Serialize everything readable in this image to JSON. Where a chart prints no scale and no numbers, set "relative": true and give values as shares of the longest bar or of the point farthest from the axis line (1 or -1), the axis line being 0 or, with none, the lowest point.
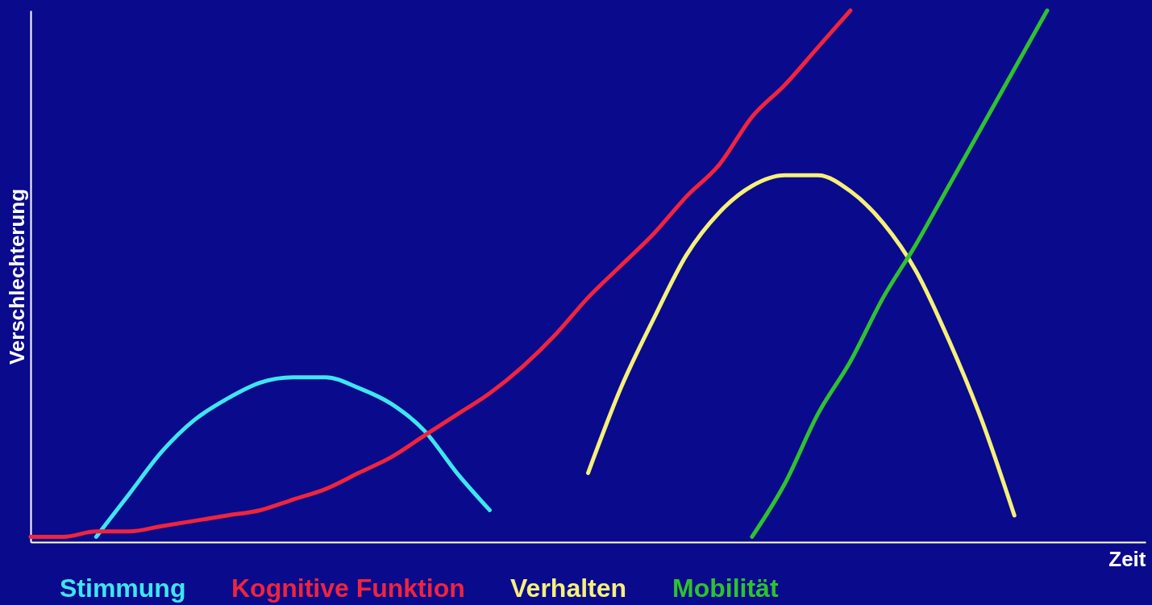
{
  "chart_data": {
    "type": "line",
    "relative": true,
    "ylabel": "Verschlechterung",
    "xlabel": "Zeit",
    "legend": "bottom",
    "grid": false,
    "marker": "none",
    "line_style": "solid",
    "categories": [
      null,
      null,
      null,
      null,
      null,
      null,
      null,
      null,
      null,
      null,
      null,
      null,
      null,
      null,
      null,
      null,
      null,
      null,
      null,
      null,
      null,
      null,
      null,
      null,
      null,
      null,
      null,
      null,
      null,
      null,
      null,
      null,
      null,
      null,
      null
    ],
    "series": [
      {
        "name": "Stimmung",
        "color": "#3ee6f0",
        "values": [
          null,
          null,
          0.01,
          0.09,
          0.17,
          0.23,
          0.27,
          0.3,
          0.31,
          0.31,
          0.29,
          0.26,
          0.21,
          0.13,
          0.06,
          null,
          null,
          null,
          null,
          null,
          null,
          null,
          null,
          null,
          null,
          null,
          null,
          null,
          null,
          null,
          null,
          null,
          null,
          null,
          null
        ]
      },
      {
        "name": "Kognitive Funktion",
        "color": "#f0243c",
        "values": [
          0.01,
          0.01,
          0.02,
          0.02,
          0.03,
          0.04,
          0.05,
          0.06,
          0.08,
          0.1,
          0.13,
          0.16,
          0.2,
          0.24,
          0.28,
          0.33,
          0.39,
          0.46,
          0.52,
          0.58,
          0.65,
          0.71,
          0.8,
          0.86,
          0.93,
          1.0,
          null,
          null,
          null,
          null,
          null,
          null,
          null,
          null,
          null
        ]
      },
      {
        "name": "Verhalten",
        "color": "#f5f07a",
        "values": [
          null,
          null,
          null,
          null,
          null,
          null,
          null,
          null,
          null,
          null,
          null,
          null,
          null,
          null,
          null,
          null,
          null,
          0.13,
          0.29,
          0.42,
          0.54,
          0.62,
          0.67,
          0.69,
          0.69,
          0.66,
          0.6,
          0.51,
          0.38,
          0.23,
          0.05,
          null,
          null,
          null,
          null
        ]
      },
      {
        "name": "Mobilität",
        "color": "#2ec22e",
        "values": [
          null,
          null,
          null,
          null,
          null,
          null,
          null,
          null,
          null,
          null,
          null,
          null,
          null,
          null,
          null,
          null,
          null,
          null,
          null,
          null,
          null,
          null,
          0.01,
          0.11,
          0.24,
          0.34,
          0.46,
          0.56,
          0.67,
          0.78,
          0.89,
          1.0,
          null,
          null,
          null
        ]
      }
    ]
  }
}
